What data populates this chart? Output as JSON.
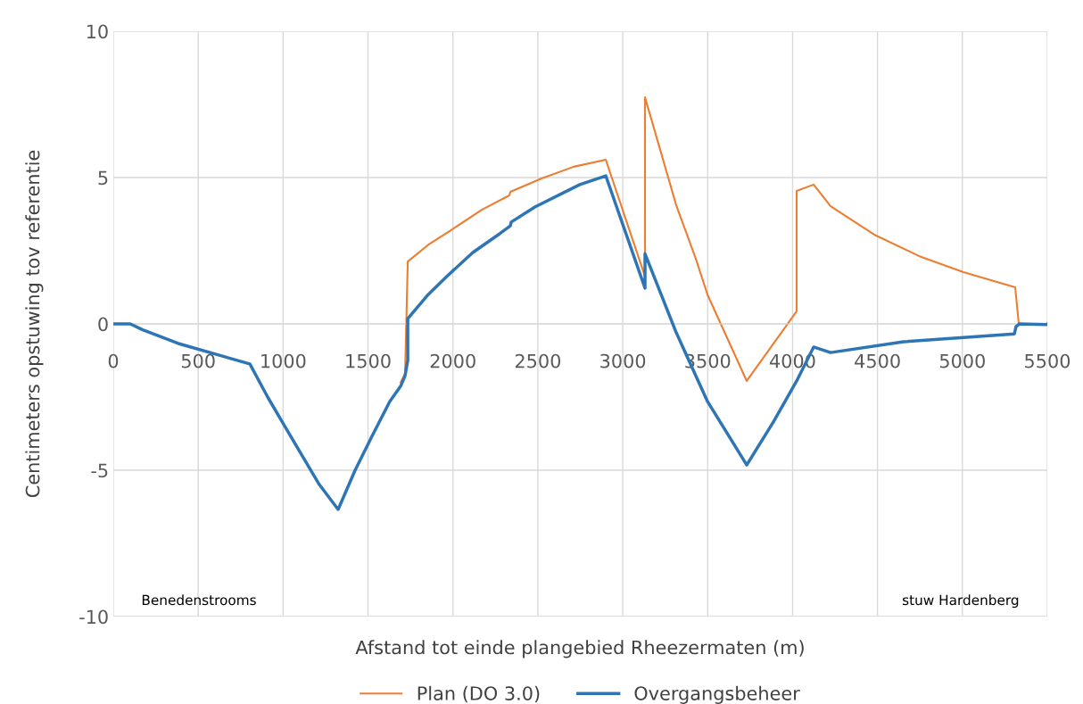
{
  "chart_data": {
    "type": "line",
    "xlabel": "Afstand tot einde plangebied Rheezermaten (m)",
    "ylabel": "Centimeters opstuwing tov referentie",
    "xlim": [
      0,
      5500
    ],
    "ylim": [
      -10,
      10
    ],
    "xticks": [
      0,
      500,
      1000,
      1500,
      2000,
      2500,
      3000,
      3500,
      4000,
      4500,
      5000,
      5500
    ],
    "yticks": [
      -10,
      -5,
      0,
      5,
      10
    ],
    "grid": true,
    "legend": "bottom",
    "marker": "none",
    "line_style": "solid",
    "annotations": [
      "Benedenstrooms",
      "stuw Hardenberg"
    ],
    "series": [
      {
        "name": "Plan (DO 3.0)",
        "color": "#ed7d31",
        "x": [
          1692,
          1718,
          1734,
          1854,
          1996,
          2170,
          2332,
          2338,
          2522,
          2711,
          2900,
          3131,
          3131,
          3315,
          3430,
          3499,
          3730,
          4024,
          4024,
          4124,
          4224,
          4481,
          4744,
          5006,
          5311,
          5332
        ],
        "values": [
          -2.0,
          -1.7,
          2.13,
          2.7,
          3.23,
          3.9,
          4.39,
          4.51,
          4.97,
          5.37,
          5.61,
          1.62,
          7.74,
          4.05,
          2.23,
          1.0,
          -1.95,
          0.43,
          4.54,
          4.76,
          4.02,
          3.05,
          2.32,
          1.77,
          1.25,
          0.0
        ]
      },
      {
        "name": "Overgangsbeheer",
        "color": "#2e75b6",
        "x": [
          0,
          100,
          173,
          383,
          804,
          909,
          1008,
          1119,
          1213,
          1324,
          1424,
          1523,
          1628,
          1692,
          1718,
          1734,
          1734,
          1734,
          1854,
          1960,
          2117,
          2275,
          2338,
          2343,
          2485,
          2747,
          2900,
          3000,
          3131,
          3131,
          3315,
          3499,
          3730,
          3887,
          4024,
          4124,
          4224,
          4654,
          5306,
          5316,
          5337,
          5495,
          5500
        ],
        "values": [
          0,
          0,
          -0.2,
          -0.67,
          -1.37,
          -2.5,
          -3.48,
          -4.57,
          -5.49,
          -6.34,
          -5.0,
          -3.84,
          -2.65,
          -2.13,
          -1.77,
          -1.25,
          -0.21,
          0.18,
          1.0,
          1.6,
          2.44,
          3.08,
          3.35,
          3.48,
          4.0,
          4.76,
          5.06,
          3.4,
          1.22,
          2.4,
          -0.3,
          -2.65,
          -4.82,
          -3.35,
          -1.95,
          -0.79,
          -0.98,
          -0.61,
          -0.34,
          -0.09,
          0.0,
          -0.02,
          0
        ]
      }
    ]
  }
}
